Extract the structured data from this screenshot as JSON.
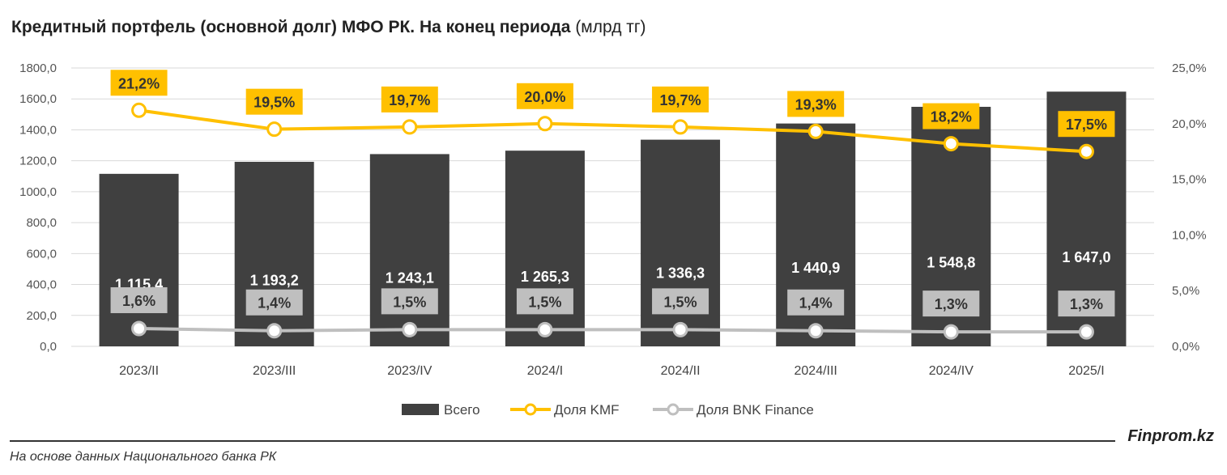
{
  "title_main": "Кредитный портфель (основной долг) МФО РК. На конец периода",
  "title_unit": "(млрд тг)",
  "source_note": "На основе данных Национального банка РК",
  "brand": "Finprom.kz",
  "colors": {
    "bar": "#404040",
    "kmf": "#FFC000",
    "bnk": "#BFBFBF",
    "grid": "#D9D9D9"
  },
  "chart_data": {
    "type": "bar",
    "categories": [
      "2023/II",
      "2023/III",
      "2023/IV",
      "2024/I",
      "2024/II",
      "2024/III",
      "2024/IV",
      "2025/I"
    ],
    "series": [
      {
        "name": "Всего",
        "axis": "left",
        "type": "bar",
        "values": [
          1115.4,
          1193.2,
          1243.1,
          1265.3,
          1336.3,
          1440.9,
          1548.8,
          1647.0
        ],
        "labels": [
          "1 115,4",
          "1 193,2",
          "1 243,1",
          "1 265,3",
          "1 336,3",
          "1 440,9",
          "1 548,8",
          "1 647,0"
        ]
      },
      {
        "name": "Доля KMF",
        "axis": "right",
        "type": "line",
        "values": [
          21.2,
          19.5,
          19.7,
          20.0,
          19.7,
          19.3,
          18.2,
          17.5
        ],
        "labels": [
          "21,2%",
          "19,5%",
          "19,7%",
          "20,0%",
          "19,7%",
          "19,3%",
          "18,2%",
          "17,5%"
        ]
      },
      {
        "name": "Доля BNK Finance",
        "axis": "right",
        "type": "line",
        "values": [
          1.6,
          1.4,
          1.5,
          1.5,
          1.5,
          1.4,
          1.3,
          1.3
        ],
        "labels": [
          "1,6%",
          "1,4%",
          "1,5%",
          "1,5%",
          "1,5%",
          "1,4%",
          "1,3%",
          "1,3%"
        ]
      }
    ],
    "y_left": {
      "ylim": [
        0,
        1800
      ],
      "ticks": [
        "0,0",
        "200,0",
        "400,0",
        "600,0",
        "800,0",
        "1000,0",
        "1200,0",
        "1400,0",
        "1600,0",
        "1800,0"
      ]
    },
    "y_right": {
      "ylim": [
        0,
        25
      ],
      "ticks": [
        "0,0%",
        "5,0%",
        "10,0%",
        "15,0%",
        "20,0%",
        "25,0%"
      ]
    },
    "grid": true,
    "legend": "bottom"
  }
}
